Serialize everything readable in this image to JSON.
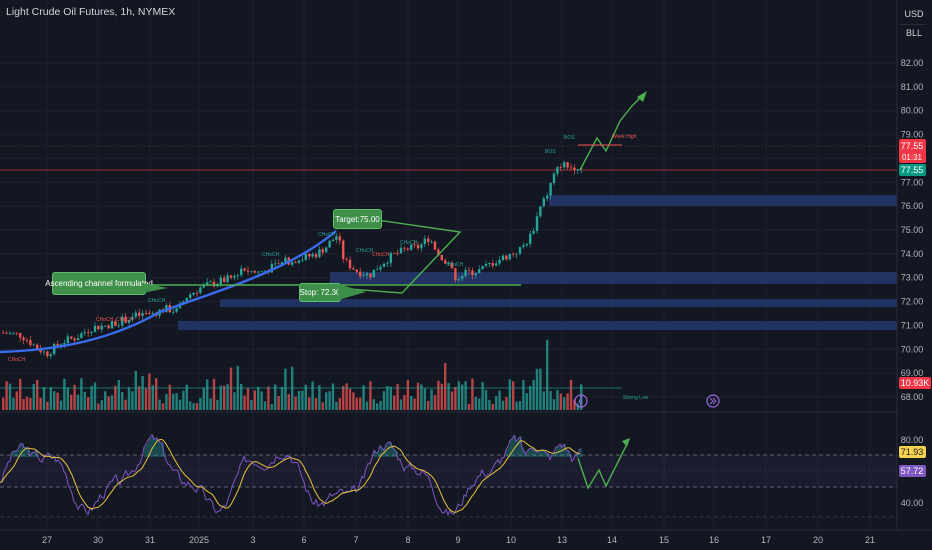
{
  "header": {
    "symbol_title": "Light Crude Oil Futures, 1h, NYMEX",
    "currency_label": "USD",
    "unit_label": "BLL"
  },
  "price_axis": {
    "ticks": [
      "82.00",
      "81.00",
      "80.00",
      "79.00",
      "78.00",
      "77.00",
      "76.00",
      "75.00",
      "74.00",
      "73.00",
      "72.00",
      "71.00",
      "70.00",
      "69.00",
      "68.00"
    ],
    "last_price": "77.55",
    "countdown": "01:31",
    "close_price": "77.55",
    "volume_value": "10.93K"
  },
  "rsi_axis": {
    "ticks": [
      "80.00",
      "40.00"
    ],
    "rsi_ma_value": "71.93",
    "rsi_value": "57.72"
  },
  "time_axis": {
    "labels": [
      "27",
      "30",
      "31",
      "2025",
      "3",
      "6",
      "7",
      "8",
      "9",
      "10",
      "13",
      "14",
      "15",
      "16",
      "17",
      "20",
      "21"
    ]
  },
  "annotations": {
    "target_label": "Target:75.00",
    "stop_label": "Stop: 72.30",
    "channel_label": "Ascending channel formulated",
    "week_high_label": "Week High",
    "bos_label": "BOS",
    "choch_label": "CHoCH",
    "strong_low_label": "Strong Low"
  },
  "colors": {
    "background": "#131722",
    "up": "#26a69a",
    "down": "#ef5350",
    "zone": "#26386e",
    "channel": "#3060e8",
    "projection": "#4caf50",
    "callout_green": "#3d8f4a",
    "rsi_line": "#7e57c2",
    "rsi_ma": "#e8c33a"
  }
}
